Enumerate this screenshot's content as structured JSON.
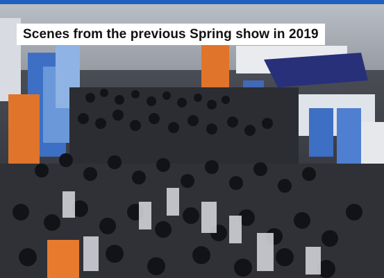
{
  "caption": "Scenes from the previous Spring show in 2019",
  "colors": {
    "top_bar": "#1f5fbf",
    "caption_bg": "#ffffff",
    "caption_text": "#111111",
    "hall_ceiling": "#c9ccd2",
    "crowd_dark": "#1c1e22",
    "booth_blue": "#3d6fc4",
    "booth_orange": "#e0742a"
  }
}
